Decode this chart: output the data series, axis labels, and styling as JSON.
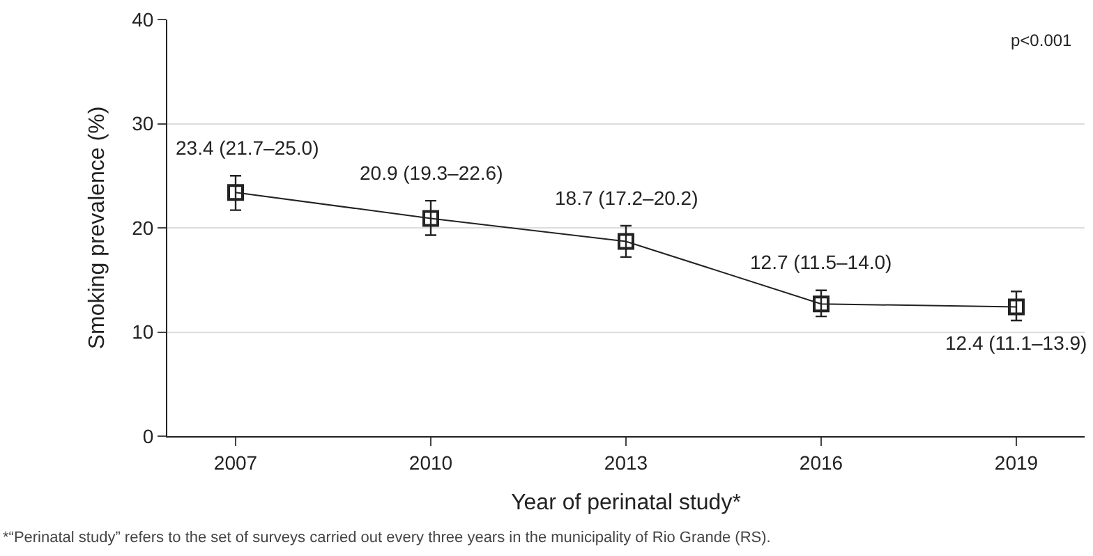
{
  "chart_data": {
    "type": "line",
    "xlabel": "Year of perinatal study*",
    "ylabel": "Smoking prevalence (%)",
    "categories": [
      "2007",
      "2010",
      "2013",
      "2016",
      "2019"
    ],
    "values": [
      23.4,
      20.9,
      18.7,
      12.7,
      12.4
    ],
    "errors": [
      [
        21.7,
        25.0
      ],
      [
        19.3,
        22.6
      ],
      [
        17.2,
        20.2
      ],
      [
        11.5,
        14.0
      ],
      [
        11.1,
        13.9
      ]
    ],
    "value_labels": [
      "23.4 (21.7–25.0)",
      "20.9 (19.3–22.6)",
      "18.7 (17.2–20.2)",
      "12.7 (11.5–14.0)",
      "12.4 (11.1–13.9)"
    ],
    "color": "#222222",
    "marker": "square",
    "line_style": "solid",
    "grid": "y",
    "ylim": [
      0,
      40
    ],
    "yticks": [
      0,
      10,
      20,
      30,
      40
    ],
    "annotations": [
      "p<0.001",
      "*“Perinatal study” refers to the set of surveys carried out every three years in the municipality of Rio Grande (RS)."
    ]
  }
}
